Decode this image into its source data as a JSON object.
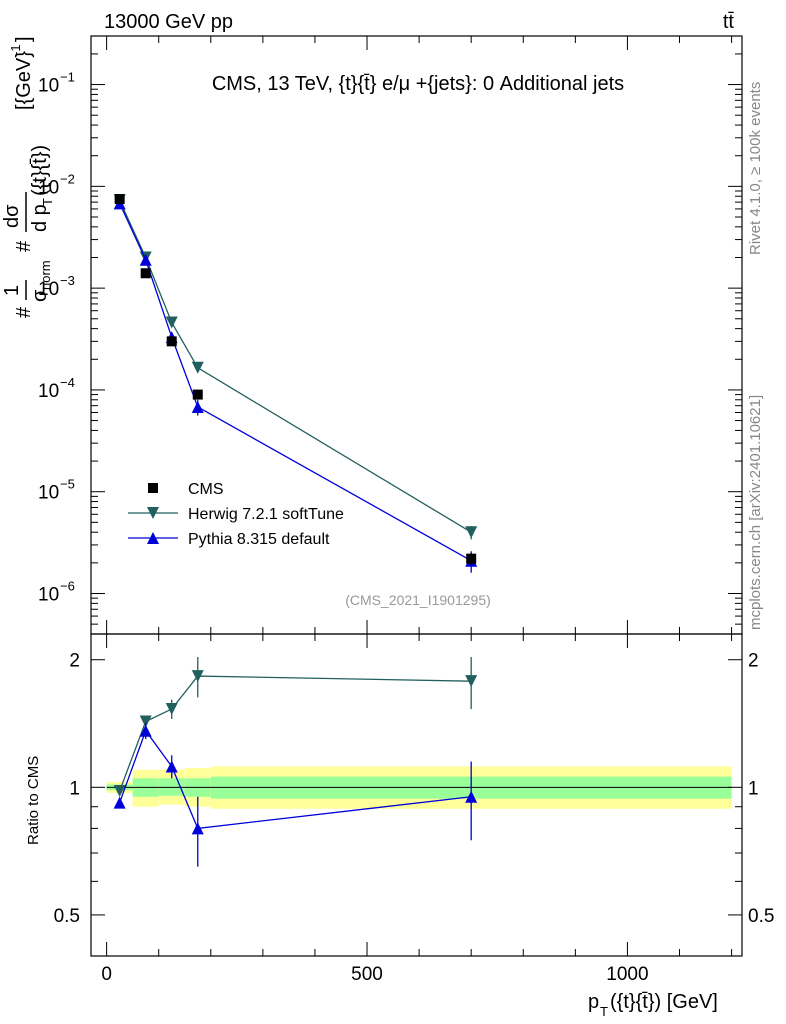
{
  "header": {
    "energy_label": "13000 GeV pp",
    "process_label": "tt̄"
  },
  "side_labels": {
    "rivet": "Rivet 4.1.0, ≥ 100k events",
    "site": "mcplots.cern.ch [arXiv:2401.10621]"
  },
  "colors": {
    "cms": "#000000",
    "herwig": "#225f5f",
    "pythia": "#0000d8",
    "band_outer": "#ffff99",
    "band_inner": "#99ff99"
  },
  "chart_data": [
    {
      "type": "line",
      "panel": "main",
      "title": "CMS, 13 TeV, {t}{t̄} e/μ +{jets}: 0 Additional jets",
      "ylabel": "#1/σ_norm #dσ/d p_T({t}{t̄}) [{GeV}^-1]",
      "ylabel_parts": {
        "hash1": "#",
        "one": "1",
        "sigma": "σ",
        "norm": "norm",
        "hash2": "#",
        "dsigma": "dσ",
        "dp": "d p",
        "dp_sub": "T",
        "arg": "({t}{t̄})",
        "unit": "[{GeV}",
        "unit_exp": "-1",
        "unit_close": "]"
      },
      "yscale": "log",
      "ylim": [
        4e-07,
        0.3
      ],
      "xlim": [
        -30,
        1220
      ],
      "ytick_labels": [
        {
          "value": 0.1,
          "base": "10",
          "exp": "−1"
        },
        {
          "value": 0.01,
          "base": "10",
          "exp": "−2"
        },
        {
          "value": 0.001,
          "base": "10",
          "exp": "−3"
        },
        {
          "value": 0.0001,
          "base": "10",
          "exp": "−4"
        },
        {
          "value": 1e-05,
          "base": "10",
          "exp": "−5"
        },
        {
          "value": 1e-06,
          "base": "10",
          "exp": "−6"
        }
      ],
      "watermark": "(CMS_2021_I1901295)",
      "legend_position": "lower-left",
      "series": [
        {
          "name": "CMS",
          "style": "data-square",
          "x": [
            25,
            75,
            125,
            175,
            700
          ],
          "y": [
            0.0075,
            0.0014,
            0.0003,
            9e-05,
            2.2e-06
          ],
          "yerr": [
            0.0003,
            0.0001,
            2e-05,
            8e-06,
            3e-07
          ]
        },
        {
          "name": "Herwig 7.2.1 softTune",
          "style": "triangle-down",
          "x": [
            25,
            75,
            125,
            175,
            700
          ],
          "y": [
            0.0073,
            0.002,
            0.00046,
            0.000165,
            4e-06
          ],
          "yerr": [
            0.0002,
            0.0001,
            3e-05,
            1.2e-05,
            6e-07
          ]
        },
        {
          "name": "Pythia 8.315 default",
          "style": "triangle-up",
          "x": [
            25,
            75,
            125,
            175,
            700
          ],
          "y": [
            0.0068,
            0.0019,
            0.00033,
            6.8e-05,
            2.1e-06
          ],
          "yerr": [
            0.0002,
            0.0001,
            3e-05,
            1.2e-05,
            5e-07
          ]
        }
      ]
    },
    {
      "type": "line",
      "panel": "ratio",
      "ylabel": "Ratio to CMS",
      "xlabel": "p_T({t}{t̄}) [GeV]",
      "xlabel_parts": {
        "p": "p",
        "sub": "T",
        "rest": "({t}{t̄}) [GeV]"
      },
      "yscale": "log",
      "ylim": [
        0.4,
        2.3
      ],
      "xlim": [
        -30,
        1220
      ],
      "ytick_labels": [
        {
          "value": 0.5,
          "text": "0.5"
        },
        {
          "value": 1,
          "text": "1"
        },
        {
          "value": 2,
          "text": "2"
        }
      ],
      "xtick_labels": [
        {
          "value": 0,
          "text": "0"
        },
        {
          "value": 500,
          "text": "500"
        },
        {
          "value": 1000,
          "text": "1000"
        }
      ],
      "bands": [
        {
          "x0": 0,
          "x1": 50,
          "outer": [
            0.97,
            1.03
          ],
          "inner": [
            0.985,
            1.015
          ]
        },
        {
          "x0": 50,
          "x1": 100,
          "outer": [
            0.9,
            1.1
          ],
          "inner": [
            0.95,
            1.05
          ]
        },
        {
          "x0": 100,
          "x1": 150,
          "outer": [
            0.91,
            1.1
          ],
          "inner": [
            0.955,
            1.05
          ]
        },
        {
          "x0": 150,
          "x1": 200,
          "outer": [
            0.9,
            1.11
          ],
          "inner": [
            0.95,
            1.05
          ]
        },
        {
          "x0": 200,
          "x1": 1200,
          "outer": [
            0.89,
            1.12
          ],
          "inner": [
            0.94,
            1.06
          ]
        }
      ],
      "series": [
        {
          "name": "Herwig 7.2.1 softTune",
          "style": "triangle-down",
          "x": [
            25,
            75,
            125,
            175,
            700
          ],
          "y": [
            0.98,
            1.43,
            1.53,
            1.83,
            1.78
          ],
          "yerr": [
            0.02,
            0.04,
            0.08,
            0.2,
            0.25
          ]
        },
        {
          "name": "Pythia 8.315 default",
          "style": "triangle-up",
          "x": [
            25,
            75,
            125,
            175,
            700
          ],
          "y": [
            0.92,
            1.36,
            1.12,
            0.8,
            0.95
          ],
          "yerr": [
            0.02,
            0.06,
            0.07,
            0.15,
            0.2
          ]
        }
      ]
    }
  ]
}
